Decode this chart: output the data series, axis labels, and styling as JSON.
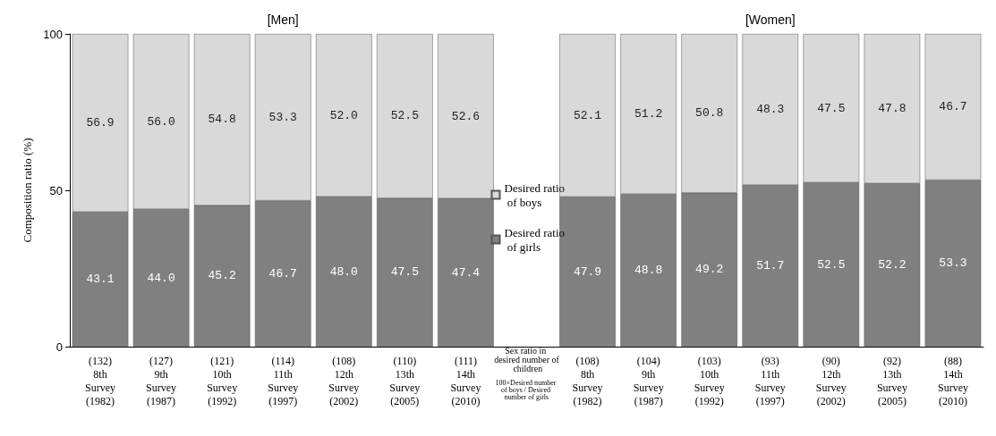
{
  "chart_data": {
    "type": "bar",
    "stacked": true,
    "ylabel": "Composition ratio (%)",
    "categories": [
      "(132)\n8th\nSurvey\n(1982)",
      "(127)\n9th\nSurvey\n(1987)",
      "(121)\n10th\nSurvey\n(1992)",
      "(114)\n11th\nSurvey\n(1997)",
      "(108)\n12th\nSurvey\n(2002)",
      "(110)\n13th\nSurvey\n(2005)",
      "(111)\n14th\nSurvey\n(2010)",
      null,
      "(108)\n8th\nSurvey\n(1982)",
      "(104)\n9th\nSurvey\n(1987)",
      "(103)\n10th\nSurvey\n(1992)",
      "(93)\n11th\nSurvey\n(1997)",
      "(90)\n12th\nSurvey\n(2002)",
      "(92)\n13th\nSurvey\n(2005)",
      "(88)\n14th\nSurvey\n(2010)"
    ],
    "series": [
      {
        "name": "Desired ratio of girls",
        "color": "#808080",
        "values": [
          43.1,
          44.0,
          45.2,
          46.7,
          48.0,
          47.5,
          47.4,
          null,
          47.9,
          48.8,
          49.2,
          51.7,
          52.5,
          52.2,
          53.3
        ],
        "value_labels": [
          "43.1",
          "44.0",
          "45.2",
          "46.7",
          "48.0",
          "47.5",
          "47.4",
          null,
          "47.9",
          "48.8",
          "49.2",
          "51.7",
          "52.5",
          "52.2",
          "53.3"
        ]
      },
      {
        "name": "Desired ratio of boys",
        "color": "#d9d9d9",
        "values": [
          56.9,
          56.0,
          54.8,
          53.3,
          52.0,
          52.5,
          52.6,
          null,
          52.1,
          51.2,
          50.8,
          48.3,
          47.5,
          47.8,
          46.7
        ],
        "value_labels": [
          "56.9",
          "56.0",
          "54.8",
          "53.3",
          "52.0",
          "52.5",
          "52.6",
          null,
          "52.1",
          "51.2",
          "50.8",
          "48.3",
          "47.5",
          "47.8",
          "46.7"
        ]
      }
    ],
    "ylim": [
      0,
      100
    ],
    "yticks": [
      0,
      50,
      100
    ],
    "grid": false,
    "legend": "center",
    "annotations": [
      "[Men]",
      "[Women]",
      "Sex ratio in desired number of children",
      "100×Desired number of boys / Desired number of girls"
    ]
  }
}
